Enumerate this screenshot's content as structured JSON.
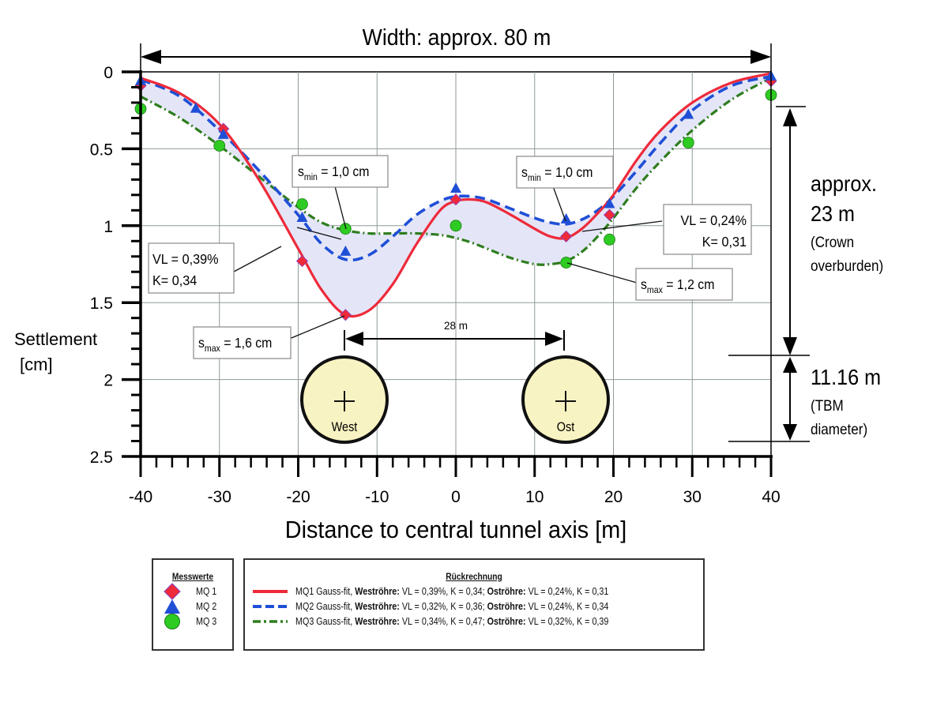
{
  "chart_data": {
    "type": "line",
    "title": "Width: approx. 80 m",
    "xlabel": "Distance to central tunnel axis [m]",
    "ylabel": "Settlement [cm]",
    "xlim": [
      -40,
      40
    ],
    "ylim": [
      0,
      2.5
    ],
    "y_inverted": true,
    "grid": true,
    "x_ticks": [
      "-40",
      "-30",
      "-20",
      "-10",
      "0",
      "10",
      "20",
      "30",
      "40"
    ],
    "y_ticks": [
      "0",
      "0.5",
      "1",
      "1.5",
      "2",
      "2.5"
    ],
    "measured_points": [
      {
        "name": "MQ 1",
        "marker": "diamond",
        "color": "#ee2a3a",
        "points": [
          [
            -40,
            0.09
          ],
          [
            -29.5,
            0.37
          ],
          [
            -19.5,
            1.23
          ],
          [
            -14,
            1.58
          ],
          [
            0,
            0.83
          ],
          [
            14,
            1.07
          ],
          [
            19.5,
            0.93
          ],
          [
            40,
            0.06
          ]
        ]
      },
      {
        "name": "MQ 2",
        "marker": "triangle",
        "color": "#1f4fd6",
        "points": [
          [
            -40,
            0.06
          ],
          [
            -33,
            0.24
          ],
          [
            -29.5,
            0.41
          ],
          [
            -19.5,
            0.95
          ],
          [
            -14,
            1.17
          ],
          [
            0,
            0.76
          ],
          [
            14,
            0.96
          ],
          [
            19.5,
            0.86
          ],
          [
            29.5,
            0.28
          ],
          [
            40,
            0.03
          ]
        ]
      },
      {
        "name": "MQ 3",
        "marker": "circle",
        "color": "#2ecc22",
        "points": [
          [
            -40,
            0.24
          ],
          [
            -30,
            0.48
          ],
          [
            -19.5,
            0.86
          ],
          [
            -14,
            1.02
          ],
          [
            0,
            1.0
          ],
          [
            14,
            1.24
          ],
          [
            19.5,
            1.09
          ],
          [
            29.5,
            0.46
          ],
          [
            40,
            0.15
          ]
        ]
      }
    ],
    "series": [
      {
        "name": "MQ1 Gauss-fit",
        "style": "solid",
        "color": "#ee2a3a",
        "x": [
          -40,
          -35,
          -30,
          -25,
          -20,
          -17,
          -14,
          -11,
          -8,
          -5,
          -2,
          0,
          2,
          4,
          7,
          10,
          12,
          14,
          16,
          18,
          20,
          23,
          26,
          30,
          35,
          40
        ],
        "values": [
          0.04,
          0.14,
          0.34,
          0.7,
          1.15,
          1.42,
          1.58,
          1.55,
          1.38,
          1.12,
          0.9,
          0.84,
          0.83,
          0.85,
          0.93,
          1.02,
          1.07,
          1.08,
          1.02,
          0.92,
          0.8,
          0.57,
          0.38,
          0.2,
          0.07,
          0.01
        ]
      },
      {
        "name": "MQ2 Gauss-fit",
        "style": "dashed",
        "color": "#1f4fd6",
        "x": [
          -40,
          -35,
          -30,
          -25,
          -20,
          -17,
          -14,
          -11,
          -8,
          -5,
          -2,
          0,
          2,
          4,
          7,
          10,
          12,
          14,
          16,
          18,
          20,
          23,
          26,
          30,
          35,
          40
        ],
        "values": [
          0.05,
          0.16,
          0.38,
          0.64,
          0.93,
          1.12,
          1.22,
          1.19,
          1.07,
          0.93,
          0.84,
          0.81,
          0.81,
          0.83,
          0.89,
          0.95,
          0.98,
          0.99,
          0.96,
          0.9,
          0.81,
          0.64,
          0.46,
          0.25,
          0.09,
          0.03
        ]
      },
      {
        "name": "MQ3 Gauss-fit",
        "style": "dash-dot",
        "color": "#2e7d1e",
        "x": [
          -40,
          -35,
          -30,
          -25,
          -20,
          -17,
          -14,
          -11,
          -8,
          -5,
          -2,
          0,
          2,
          4,
          7,
          10,
          12,
          14,
          16,
          18,
          20,
          23,
          26,
          30,
          35,
          40
        ],
        "values": [
          0.16,
          0.3,
          0.48,
          0.68,
          0.88,
          0.98,
          1.03,
          1.05,
          1.05,
          1.05,
          1.06,
          1.08,
          1.11,
          1.15,
          1.21,
          1.25,
          1.25,
          1.23,
          1.17,
          1.07,
          0.95,
          0.75,
          0.58,
          0.38,
          0.18,
          0.04
        ]
      }
    ],
    "annotations": [
      {
        "text": "s_min = 1,0 cm",
        "at": [
          -14,
          1.02
        ]
      },
      {
        "text": "s_min = 1,0 cm",
        "at": [
          14,
          0.96
        ]
      },
      {
        "text": "VL = 0,39% / K= 0,34",
        "at": [
          -25,
          1.0
        ]
      },
      {
        "text": "VL = 0,24% / K= 0,31",
        "at": [
          16,
          1.02
        ]
      },
      {
        "text": "s_max = 1,6 cm",
        "at": [
          -14,
          1.58
        ]
      },
      {
        "text": "s_max = 1,2 cm",
        "at": [
          14,
          1.24
        ]
      },
      {
        "text": "28 m",
        "at": [
          0,
          1.73
        ]
      }
    ]
  },
  "header": {
    "width_label": "Width: approx. 80 m"
  },
  "axes": {
    "y_label_line1": "Settlement",
    "y_label_line2": "[cm]",
    "x_label": "Distance to central tunnel axis [m]"
  },
  "callouts": {
    "smin_west": {
      "s": "s",
      "sub": "min",
      "rest": " = 1,0 cm"
    },
    "smin_east": {
      "s": "s",
      "sub": "min",
      "rest": " = 1,0 cm"
    },
    "smax_west": {
      "s": "s",
      "sub": "max",
      "rest": " = 1,6 cm"
    },
    "smax_east": {
      "s": "s",
      "sub": "max",
      "rest": " = 1,2 cm"
    },
    "vl_west": {
      "line1": "VL = 0,39%",
      "line2": "K= 0,34"
    },
    "vl_east": {
      "line1": "VL = 0,24%",
      "line2": "K= 0,31"
    },
    "spacing": "28 m"
  },
  "tunnels": {
    "west": "West",
    "east": "Ost",
    "fill": "#f8f3c2"
  },
  "dimensions": {
    "crown_line1": "approx.",
    "crown_line2": "23 m",
    "crown_line3": "(Crown",
    "crown_line4": "overburden)",
    "tbm_line1": "11.16 m",
    "tbm_line2": "(TBM",
    "tbm_line3": "diameter)"
  },
  "legend_measured": {
    "title": "Messwerte",
    "items": [
      {
        "label": "MQ 1"
      },
      {
        "label": "MQ 2"
      },
      {
        "label": "MQ 3"
      }
    ]
  },
  "legend_fit": {
    "title": "Rückrechnung",
    "items": [
      {
        "prefix": "MQ1 Gauss-fit, ",
        "west_label": "Weströhre:",
        "west_val": " VL = 0,39%, K = 0,34; ",
        "east_label": "Oströhre:",
        "east_val": " VL = 0,24%, K = 0,31"
      },
      {
        "prefix": "MQ2 Gauss-fit, ",
        "west_label": "Weströhre:",
        "west_val": " VL = 0,32%, K = 0,36; ",
        "east_label": "Oströhre:",
        "east_val": " VL = 0,24%, K = 0,34"
      },
      {
        "prefix": "MQ3 Gauss-fit, ",
        "west_label": "Weströhre:",
        "west_val": " VL = 0,34%, K = 0,47; ",
        "east_label": "Oströhre:",
        "east_val": " VL = 0,32%, K = 0,39"
      }
    ]
  },
  "colors": {
    "mq1": "#ee2a3a",
    "mq2": "#1f4fd6",
    "mq3_marker": "#2ecc22",
    "mq3_line": "#2e7d1e",
    "band_fill": "#e4e6f8",
    "grid": "#8f9a9a"
  }
}
